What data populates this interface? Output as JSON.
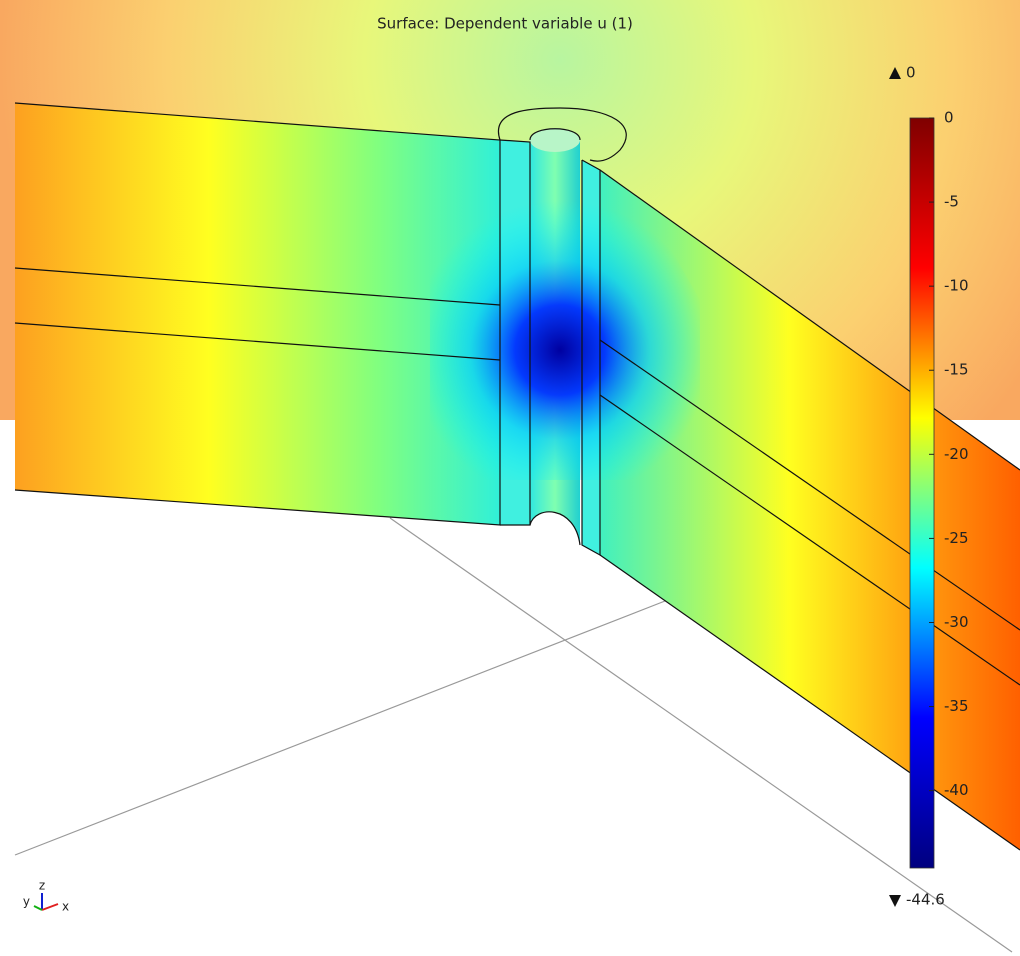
{
  "chart_data": {
    "type": "surface",
    "title": "Surface: Dependent variable u (1)",
    "max": 0,
    "min": -44.6,
    "clim": [
      -44.6,
      0
    ],
    "cticks": [
      0,
      -5,
      -10,
      -15,
      -20,
      -25,
      -30,
      -35,
      -40
    ],
    "colormap": [
      "#00007f",
      "#0000ff",
      "#00ffff",
      "#ffff00",
      "#ff0000",
      "#7f0000"
    ],
    "axes": {
      "x": "x",
      "y": "y",
      "z": "z"
    }
  }
}
